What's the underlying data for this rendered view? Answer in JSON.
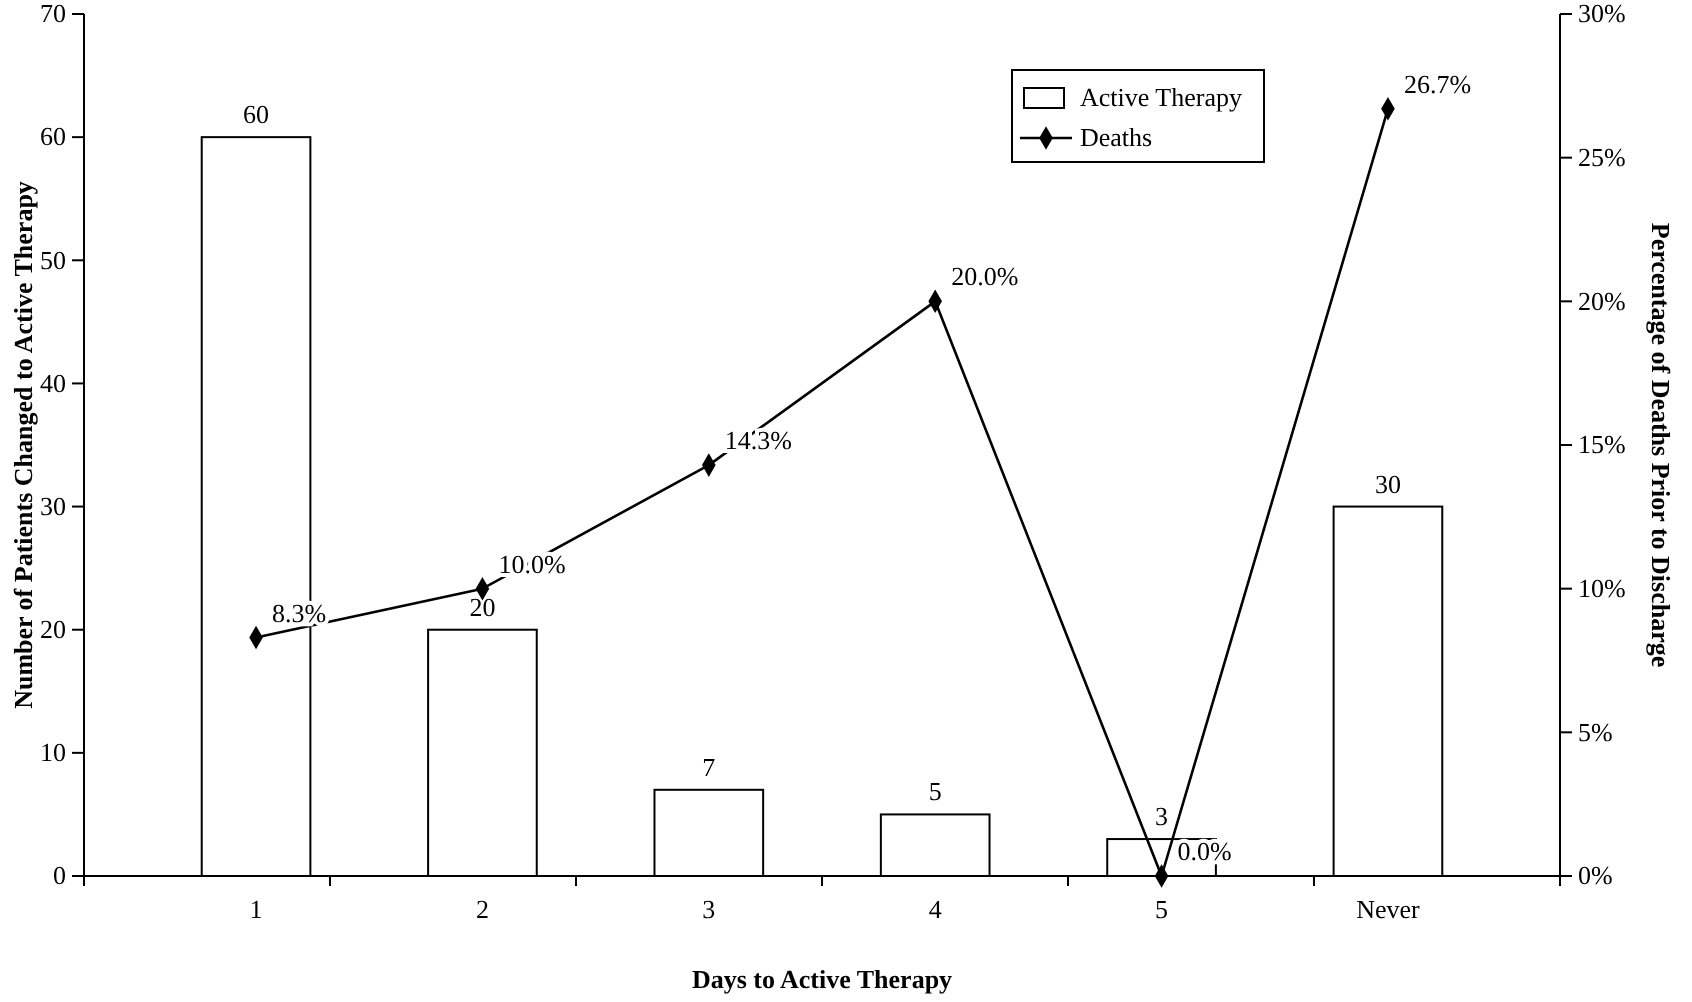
{
  "chart_data": {
    "type": "bar",
    "xlabel": "Days to Active Therapy",
    "ylabel": "Number of Patients Changed to Active Therapy",
    "y2label": "Percentage of Deaths Prior to Discharge",
    "categories": [
      "1",
      "2",
      "3",
      "4",
      "5",
      "Never"
    ],
    "series": [
      {
        "name": "Active Therapy",
        "color": "#ffffff",
        "values": [
          60,
          20,
          7,
          5,
          3,
          30
        ]
      },
      {
        "name": "Deaths",
        "type": "line",
        "axis": "y2",
        "color": "#000000",
        "marker": "diamond",
        "values": [
          8.3,
          10.0,
          14.3,
          20.0,
          0.0,
          26.7
        ],
        "value_labels": [
          "8.3%",
          "10.0%",
          "14.3%",
          "20.0%",
          "0.0%",
          "26.7%"
        ]
      }
    ],
    "data_labels": true,
    "ylim": [
      0,
      70
    ],
    "yticks": [
      0,
      10,
      20,
      30,
      40,
      50,
      60,
      70
    ],
    "y2lim": [
      0,
      30
    ],
    "y2ticks": [
      {
        "value": 0,
        "label": "0%"
      },
      {
        "value": 5,
        "label": "5%"
      },
      {
        "value": 10,
        "label": "10%"
      },
      {
        "value": 15,
        "label": "15%"
      },
      {
        "value": 20,
        "label": "20%"
      },
      {
        "value": 25,
        "label": "25%"
      },
      {
        "value": 30,
        "label": "30%"
      }
    ],
    "legend": "top right",
    "grid": false
  }
}
